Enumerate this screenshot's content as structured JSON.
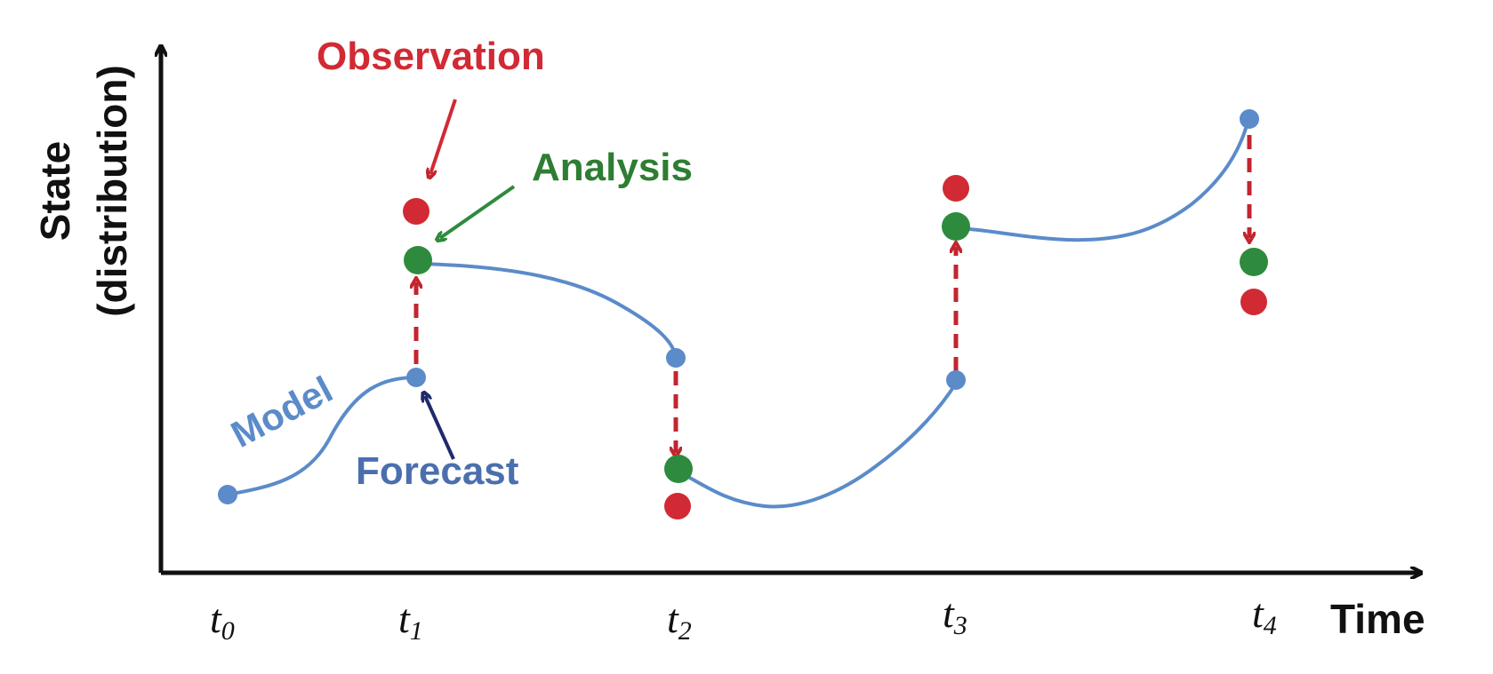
{
  "colors": {
    "axis": "#111111",
    "model": "#5B8BC9",
    "model_point": "#5B8BC9",
    "observation": "#D12A34",
    "analysis": "#2E8B3E",
    "update_arrow": "#C3252E",
    "forecast_pointer": "#1F2A6B",
    "analysis_label": "#2E7D32",
    "forecast_label": "#4B6FAE"
  },
  "axes": {
    "y_title_line1": "State",
    "y_title_line2": "(distribution)",
    "x_title": "Time"
  },
  "time_ticks": [
    {
      "main": "t",
      "sub": "0"
    },
    {
      "main": "t",
      "sub": "1"
    },
    {
      "main": "t",
      "sub": "2"
    },
    {
      "main": "t",
      "sub": "3"
    },
    {
      "main": "t",
      "sub": "4"
    }
  ],
  "labels": {
    "observation": "Observation",
    "analysis": "Analysis",
    "forecast": "Forecast",
    "model": "Model"
  },
  "icons": {
    "model_point": "blue-dot",
    "observation_point": "red-dot",
    "analysis_point": "green-dot",
    "update": "dashed-arrow"
  }
}
